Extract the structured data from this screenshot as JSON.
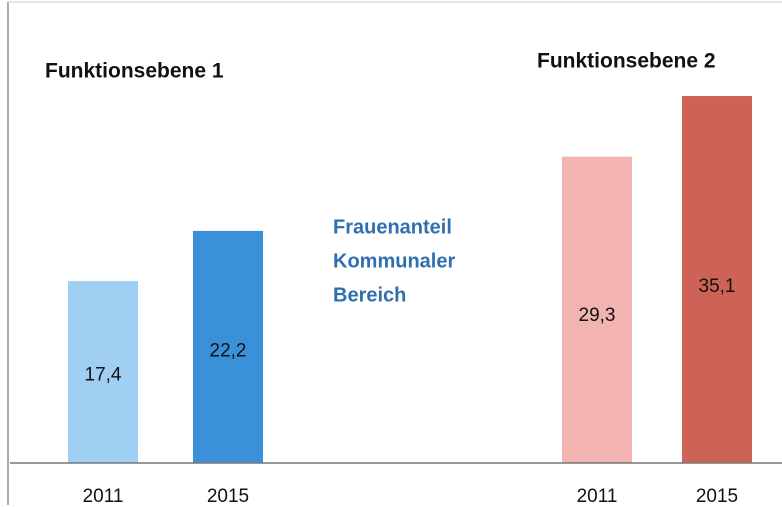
{
  "chart_data": [
    {
      "type": "bar",
      "title": "Funktionsebene 1",
      "categories": [
        "2011",
        "2015"
      ],
      "values": [
        17.4,
        22.2
      ],
      "value_labels": [
        "17,4",
        "22,2"
      ],
      "colors": [
        "#9fd0f4",
        "#3b90da"
      ],
      "ylim": [
        0,
        44
      ]
    },
    {
      "type": "bar",
      "title": "Funktionsebene 2",
      "categories": [
        "2011",
        "2015"
      ],
      "values": [
        29.3,
        35.1
      ],
      "value_labels": [
        "29,3",
        "35,1"
      ],
      "colors": [
        "#f2b3b1",
        "#cd6257"
      ],
      "ylim": [
        0,
        44
      ]
    }
  ],
  "annotation": [
    "Frauenanteil",
    "Kommunaler",
    "Bereich"
  ]
}
